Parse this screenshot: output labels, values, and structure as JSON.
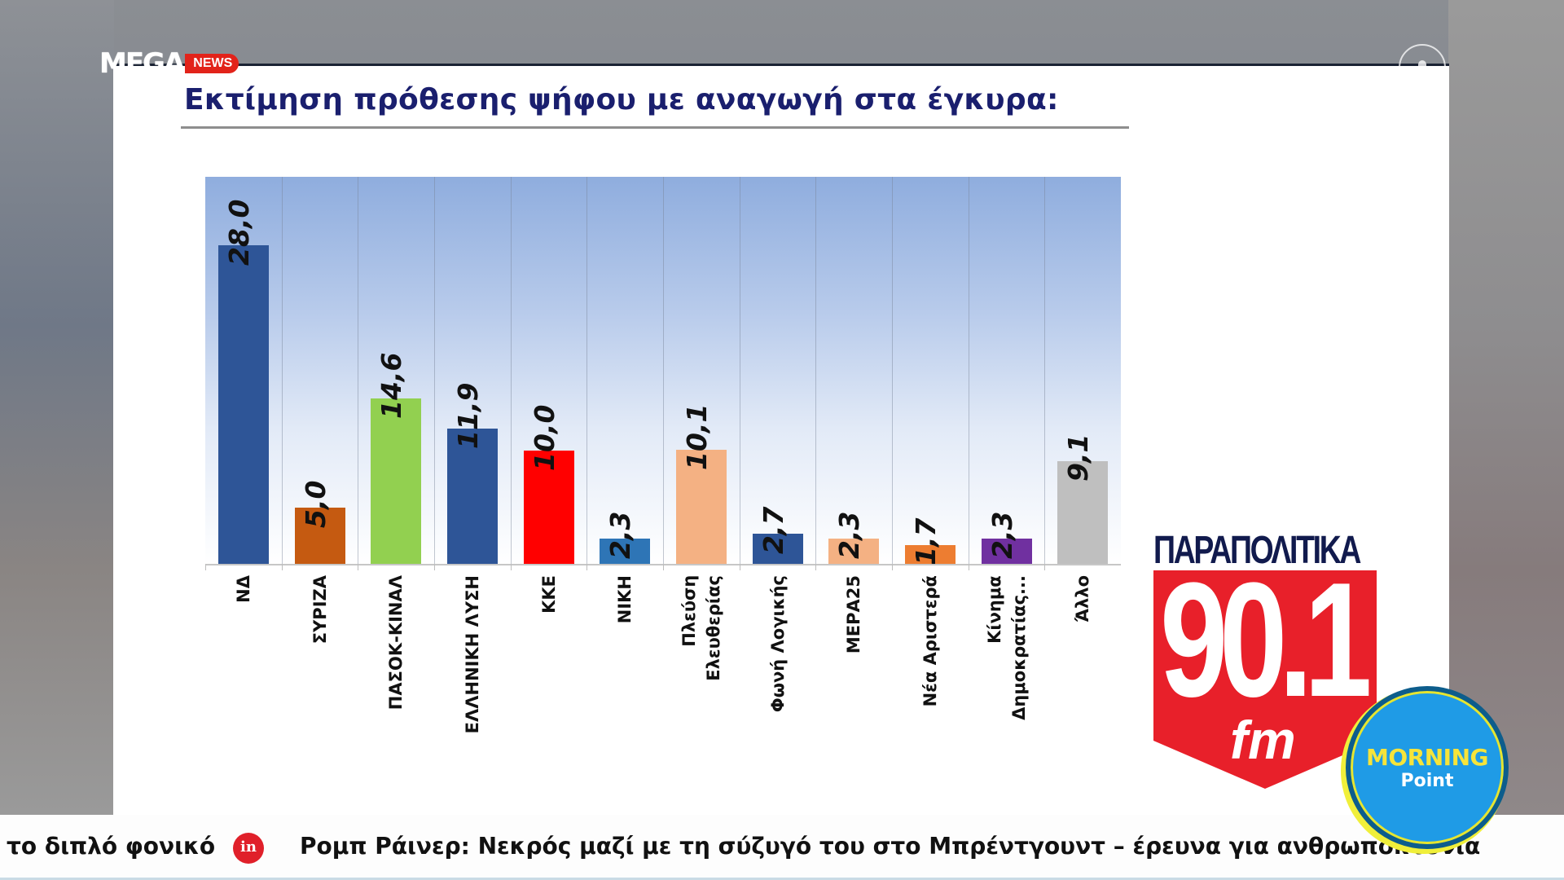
{
  "broadcast": {
    "channel_logo_text": "MEGA",
    "channel_logo_badge": "NEWS",
    "radio_logo": {
      "brand": "ΠΑΡΑΠΟΛΙΤΙΚΑ",
      "frequency": "90.1",
      "band": "fm"
    },
    "show_badge": {
      "line1": "MORNING",
      "line2": "Point"
    },
    "ticker": {
      "items": [
        "το διπλό φονικό",
        "Ρομπ Ράινερ: Νεκρός μαζί με τη σύζυγό του στο Μπρέντγουντ – έρευνα για ανθρωποκτονία"
      ],
      "separator_icon": "in"
    }
  },
  "slide": {
    "title": "Εκτίμηση πρόθεσης ψήφου με αναγωγή στα έγκυρα:"
  },
  "chart_data": {
    "type": "bar",
    "title": "Εκτίμηση πρόθεσης ψήφου με αναγωγή στα έγκυρα:",
    "xlabel": "",
    "ylabel": "",
    "ylim": [
      0,
      34
    ],
    "grid": "vertical category separators",
    "legend": "none",
    "value_format": "comma decimal",
    "categories": [
      "ΝΔ",
      "ΣΥΡΙΖΑ",
      "ΠΑΣΟΚ-ΚΙΝΑΛ",
      "ΕΛΛΗΝΙΚΗ ΛΥΣΗ",
      "ΚΚΕ",
      "ΝΙΚΗ",
      "Πλεύση\nΕλευθερίας",
      "Φωνή Λογικής",
      "ΜΕΡΑ25",
      "Νέα Αριστερά",
      "Κίνημα\nΔημοκρατίας...",
      "Άλλο"
    ],
    "values": [
      28.0,
      5.0,
      14.6,
      11.9,
      10.0,
      2.3,
      10.1,
      2.7,
      2.3,
      1.7,
      2.3,
      9.1
    ],
    "value_labels": [
      "28,0",
      "5,0",
      "14,6",
      "11,9",
      "10,0",
      "2,3",
      "10,1",
      "2,7",
      "2,3",
      "1,7",
      "2,3",
      "9,1"
    ],
    "colors": [
      "#2e5597",
      "#c55a11",
      "#92d050",
      "#2e5597",
      "#ff0000",
      "#2e75b6",
      "#f4b183",
      "#2e5597",
      "#f4b183",
      "#ed7d31",
      "#7030a0",
      "#bfbfbf"
    ]
  }
}
